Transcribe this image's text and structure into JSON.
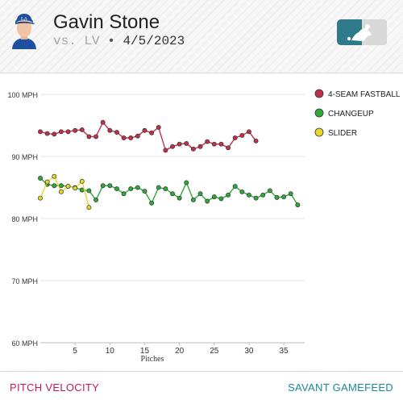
{
  "header": {
    "player_name": "Gavin Stone",
    "matchup": "vs. LV",
    "separator": "•",
    "date": "4/5/2023",
    "avatar_icon": "player-headshot-icon",
    "logo_icon": "mlb-logo-icon",
    "logo_color": "#2f7a8a"
  },
  "footer": {
    "left_label": "PITCH VELOCITY",
    "right_label": "SAVANT GAMEFEED"
  },
  "chart_data": {
    "type": "line",
    "xlabel": "Pitches",
    "ylabel": "",
    "xlim": [
      0,
      38
    ],
    "ylim": [
      60,
      103
    ],
    "x_ticks": [
      5,
      10,
      15,
      20,
      25,
      30,
      35
    ],
    "y_ticks": [
      60,
      70,
      80,
      90,
      100
    ],
    "y_tick_labels": [
      "60 MPH",
      "70 MPH",
      "80 MPH",
      "90 MPH",
      "100 MPH"
    ],
    "grid": "horizontal",
    "legend_position": "right",
    "series": [
      {
        "name": "4-SEAM FASTBALL",
        "color": "#c0304a",
        "x": [
          0,
          1,
          2,
          3,
          4,
          5,
          6,
          7,
          8,
          9,
          10,
          11,
          12,
          13,
          14,
          15,
          16,
          17,
          18,
          19,
          20,
          21,
          22,
          23,
          24,
          25,
          26,
          27,
          28,
          29,
          30,
          31
        ],
        "y": [
          94.0,
          93.7,
          93.6,
          94.0,
          94.0,
          94.2,
          94.3,
          93.2,
          93.2,
          95.5,
          94.2,
          93.9,
          93.0,
          93.0,
          93.3,
          94.2,
          93.8,
          94.7,
          91.0,
          91.6,
          92.0,
          92.1,
          91.2,
          91.6,
          92.4,
          92.0,
          92.0,
          91.4,
          93.0,
          93.4,
          94.0,
          92.5
        ]
      },
      {
        "name": "CHANGEUP",
        "color": "#2fa83a",
        "x": [
          0,
          1,
          2,
          3,
          4,
          5,
          6,
          7,
          8,
          9,
          10,
          11,
          12,
          13,
          14,
          15,
          16,
          17,
          18,
          19,
          20,
          21,
          22,
          23,
          24,
          25,
          26,
          27,
          28,
          29,
          30,
          31,
          32,
          33,
          34,
          35,
          36,
          37
        ],
        "y": [
          86.5,
          85.5,
          85.3,
          85.3,
          85.2,
          85.0,
          84.6,
          84.5,
          83.0,
          85.3,
          85.3,
          84.8,
          84.0,
          84.8,
          85.0,
          84.4,
          82.5,
          85.0,
          84.8,
          84.0,
          83.3,
          85.8,
          83.0,
          84.0,
          82.8,
          83.5,
          83.2,
          83.8,
          85.2,
          84.3,
          83.8,
          83.3,
          83.8,
          84.5,
          83.4,
          83.5,
          84.0,
          82.2
        ]
      },
      {
        "name": "SLIDER",
        "color": "#e8d82a",
        "x": [
          0,
          1,
          2,
          3,
          4,
          5,
          6,
          7
        ],
        "y": [
          83.3,
          85.9,
          86.8,
          84.3,
          85.2,
          84.9,
          86.0,
          81.8
        ]
      }
    ]
  }
}
